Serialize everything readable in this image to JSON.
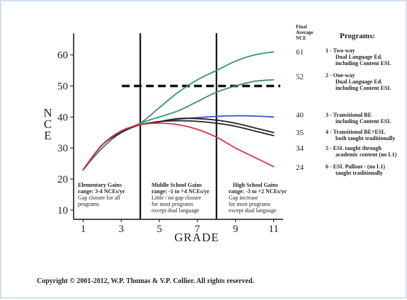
{
  "chart_data": {
    "type": "line",
    "xlabel": "GRADE",
    "ylabel": "NCE",
    "xlim": [
      0.5,
      11.5
    ],
    "ylim": [
      7,
      67
    ],
    "x_ticks": [
      1,
      3,
      5,
      7,
      9,
      11
    ],
    "y_ticks": [
      10,
      20,
      30,
      40,
      50,
      60
    ],
    "x_tick_labels": [
      "1",
      "3",
      "5",
      "7",
      "9",
      "11"
    ],
    "y_tick_labels": [
      "10",
      "20",
      "30",
      "40",
      "50",
      "60"
    ],
    "reference_line": {
      "y": 50,
      "style": "dashed"
    },
    "grade_dividers": [
      4,
      8
    ],
    "series": [
      {
        "program": "1",
        "final": 61,
        "color": "#3d8f70",
        "x": [
          1,
          2,
          3,
          4,
          5,
          6,
          7,
          8,
          9,
          10,
          11
        ],
        "y": [
          23,
          30,
          35,
          38,
          43,
          48,
          52,
          55,
          58,
          60,
          61
        ]
      },
      {
        "program": "2",
        "final": 52,
        "color": "#3d8f70",
        "x": [
          1,
          2,
          3,
          4,
          5,
          6,
          7,
          8,
          9,
          10,
          11
        ],
        "y": [
          23,
          30,
          35,
          38,
          40,
          42,
          45,
          48,
          50,
          51.5,
          52
        ]
      },
      {
        "program": "3",
        "final": 40,
        "color": "#3355cc",
        "x": [
          1,
          2,
          3,
          4,
          5,
          6,
          7,
          8,
          9,
          10,
          11
        ],
        "y": [
          23,
          31,
          35.5,
          37.5,
          38.5,
          39.3,
          39.8,
          40.2,
          40.4,
          40.3,
          40
        ]
      },
      {
        "program": "4",
        "final": 35,
        "color": "#222222",
        "x": [
          1,
          2,
          3,
          4,
          5,
          6,
          7,
          8,
          9,
          10,
          11
        ],
        "y": [
          23,
          31,
          35,
          37.5,
          38.5,
          39.5,
          39.5,
          39,
          38,
          36.5,
          35
        ]
      },
      {
        "program": "5",
        "final": 34,
        "color": "#222222",
        "x": [
          1,
          2,
          3,
          4,
          5,
          6,
          7,
          8,
          9,
          10,
          11
        ],
        "y": [
          23,
          31,
          35,
          37.5,
          38.5,
          38.8,
          38.6,
          38,
          37,
          35.5,
          34
        ]
      },
      {
        "program": "6",
        "final": 24,
        "color": "#dd3344",
        "x": [
          1,
          2,
          3,
          4,
          5,
          6,
          7,
          8,
          9,
          10,
          11
        ],
        "y": [
          23,
          31,
          35.5,
          37.5,
          38,
          37.5,
          36,
          33.5,
          30,
          27,
          24
        ]
      }
    ]
  },
  "legend": {
    "final_header_lines": [
      "Final",
      "Average",
      "NCE"
    ],
    "programs_header": "Programs:",
    "items": [
      {
        "final": "61",
        "lines": [
          "1 - Two-way",
          "Dual Language Ed.",
          "including Content ESL"
        ]
      },
      {
        "final": "52",
        "lines": [
          "2 - One-way",
          "Dual Language Ed.",
          "including Content ESL"
        ]
      },
      {
        "final": "40",
        "lines": [
          "3 - Transitional BE",
          "including Content ESL"
        ]
      },
      {
        "final": "35",
        "lines": [
          "4 - Transitional BE+ESL",
          "both taught traditionally"
        ]
      },
      {
        "final": "34",
        "lines": [
          "5 - ESL taught through",
          "academic content (no L1)"
        ]
      },
      {
        "final": "24",
        "lines": [
          "6 - ESL Pullout - (no L1)",
          "taught traditionally"
        ]
      }
    ]
  },
  "regions": [
    {
      "title": "Elementary Gains",
      "lines": [
        "range: 3-4 NCEs/yr",
        "Gap closure for all",
        "programs"
      ]
    },
    {
      "title": "Middle School Gains",
      "lines": [
        "range: -1 to +4 NCEs/yr",
        "Little / no gap closure",
        "for most programs",
        "except dual language"
      ]
    },
    {
      "title": "High School Gains",
      "lines": [
        "range: -3 to +2 NCEs/yr",
        "Gap increase",
        "for most programs",
        "except dual language"
      ]
    }
  ],
  "copyright": "Copyright © 2001-2012, W.P. Thomas & V.P. Collier.  All rights reserved."
}
